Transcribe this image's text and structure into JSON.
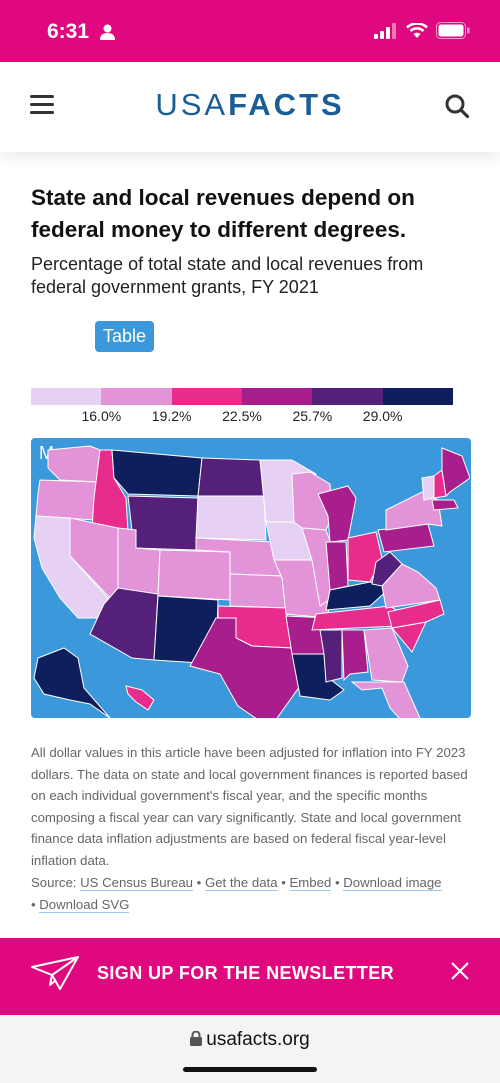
{
  "status_bar": {
    "time": "6:31"
  },
  "header": {
    "logo_light": "USA",
    "logo_bold": "FACTS"
  },
  "article": {
    "title": "State and local revenues depend on federal money to different degrees.",
    "subtitle": "Percentage of total state and local revenues from federal government grants, FY 2021"
  },
  "view_toggle": {
    "map_label": "Map",
    "table_label": "Table"
  },
  "legend": {
    "colors": [
      "#e6d1f5",
      "#e394d8",
      "#e82c8c",
      "#a81e8c",
      "#55207a",
      "#0f1e5c"
    ],
    "thresholds": [
      "16.0%",
      "19.2%",
      "22.5%",
      "25.7%",
      "29.0%"
    ]
  },
  "chart_data": {
    "type": "choropleth",
    "title": "State and local revenues depend on federal money to different degrees.",
    "subtitle": "Percentage of total state and local revenues from federal government grants, FY 2021",
    "bins": [
      "16.0%",
      "19.2%",
      "22.5%",
      "25.7%",
      "29.0%"
    ],
    "state_bins": {
      "WA": 1,
      "OR": 1,
      "CA": 0,
      "ID": 2,
      "NV": 1,
      "UT": 1,
      "AZ": 4,
      "MT": 5,
      "WY": 4,
      "CO": 1,
      "NM": 5,
      "ND": 4,
      "SD": 0,
      "NE": 1,
      "KS": 1,
      "OK": 2,
      "TX": 3,
      "MN": 0,
      "IA": 0,
      "MO": 1,
      "AR": 3,
      "LA": 5,
      "WI": 1,
      "IL": 1,
      "MI": 3,
      "IN": 3,
      "OH": 2,
      "KY": 5,
      "TN": 2,
      "MS": 4,
      "AL": 3,
      "GA": 1,
      "FL": 1,
      "SC": 2,
      "NC": 2,
      "VA": 1,
      "WV": 4,
      "PA": 3,
      "NY": 1,
      "ME": 3,
      "VT": 0,
      "NH": 2,
      "MA": 3,
      "AK": 5,
      "HI": 2
    }
  },
  "note": "All dollar values in this article have been adjusted for inflation into FY 2023 dollars. The data on state and local government finances is reported based on each individual government's fiscal year, and the specific months composing a fiscal year can vary significantly. State and local government finance data inflation adjustments are based on federal fiscal year-level inflation data.",
  "source": {
    "prefix": "Source: ",
    "links": [
      "US Census Bureau",
      "Get the data",
      "Embed",
      "Download image",
      "Download SVG"
    ],
    "separator": " • "
  },
  "newsletter": {
    "label": "SIGN UP FOR THE NEWSLETTER"
  },
  "url_bar": {
    "domain": "usafacts.org"
  }
}
